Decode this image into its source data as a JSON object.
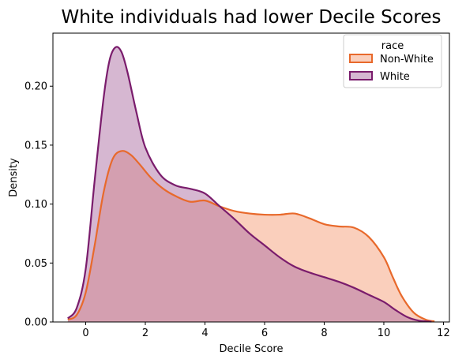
{
  "chart_data": {
    "type": "area",
    "title": "White individuals had lower Decile Scores",
    "xlabel": "Decile Score",
    "ylabel": "Density",
    "xlim": [
      -1.1,
      12.2
    ],
    "ylim": [
      0,
      0.245
    ],
    "x_ticks": [
      0,
      2,
      4,
      6,
      8,
      10,
      12
    ],
    "y_ticks": [
      0.0,
      0.05,
      0.1,
      0.15,
      0.2
    ],
    "grid": false,
    "legend": {
      "title": "race",
      "placement": "top-right"
    },
    "series": [
      {
        "name": "Non-White",
        "line_color": "#e8692b",
        "fill_color": "#f6a07a",
        "x": [
          -0.6,
          -0.3,
          0.0,
          0.3,
          0.6,
          0.9,
          1.2,
          1.5,
          1.8,
          2.2,
          2.6,
          3.0,
          3.5,
          4.0,
          4.5,
          5.0,
          5.5,
          6.0,
          6.5,
          7.0,
          7.5,
          8.0,
          8.5,
          9.0,
          9.5,
          10.0,
          10.3,
          10.6,
          11.0,
          11.4,
          11.7
        ],
        "y": [
          0.002,
          0.006,
          0.025,
          0.065,
          0.11,
          0.138,
          0.145,
          0.142,
          0.134,
          0.122,
          0.113,
          0.107,
          0.102,
          0.103,
          0.098,
          0.094,
          0.092,
          0.091,
          0.091,
          0.092,
          0.088,
          0.083,
          0.081,
          0.08,
          0.072,
          0.055,
          0.038,
          0.022,
          0.008,
          0.002,
          0.0005
        ]
      },
      {
        "name": "White",
        "line_color": "#7a1c6c",
        "fill_color": "#ad6fa4",
        "x": [
          -0.6,
          -0.3,
          0.0,
          0.3,
          0.6,
          0.8,
          1.0,
          1.2,
          1.4,
          1.7,
          2.0,
          2.5,
          3.0,
          3.5,
          4.0,
          4.5,
          5.0,
          5.5,
          6.0,
          6.5,
          7.0,
          7.5,
          8.0,
          8.5,
          9.0,
          9.5,
          10.0,
          10.4,
          10.8,
          11.2,
          11.6
        ],
        "y": [
          0.003,
          0.012,
          0.045,
          0.12,
          0.19,
          0.222,
          0.233,
          0.229,
          0.212,
          0.178,
          0.148,
          0.125,
          0.116,
          0.113,
          0.109,
          0.098,
          0.087,
          0.075,
          0.065,
          0.055,
          0.047,
          0.042,
          0.038,
          0.034,
          0.029,
          0.023,
          0.017,
          0.01,
          0.004,
          0.001,
          0.0003
        ]
      }
    ]
  }
}
